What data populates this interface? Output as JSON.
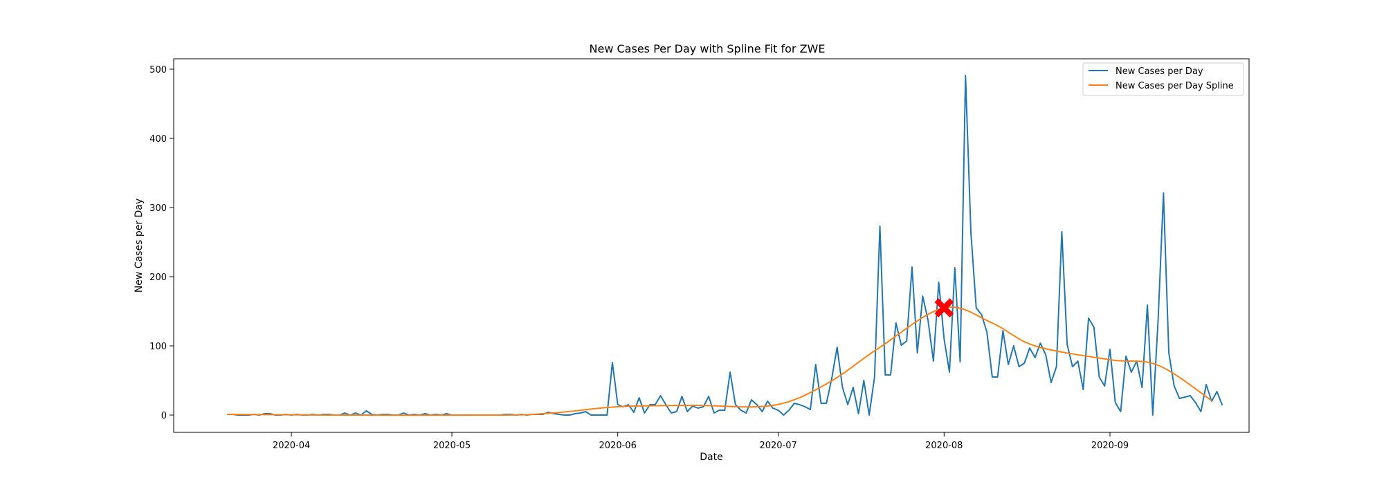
{
  "chart_data": {
    "type": "line",
    "title": "New Cases Per Day with Spline Fit for ZWE",
    "xlabel": "Date",
    "ylabel": "New Cases per Day",
    "xlim": [
      "2020-03-10",
      "2020-09-27"
    ],
    "ylim": [
      -25,
      515
    ],
    "x_ticks": [
      "2020-04",
      "2020-05",
      "2020-06",
      "2020-07",
      "2020-08",
      "2020-09"
    ],
    "x_tick_dates": [
      "2020-04-01",
      "2020-05-01",
      "2020-06-01",
      "2020-07-01",
      "2020-08-01",
      "2020-09-01"
    ],
    "y_ticks": [
      0,
      100,
      200,
      300,
      400,
      500
    ],
    "grid": false,
    "legend_position": "top-right",
    "series": [
      {
        "name": "New Cases per Day",
        "color": "#1f77b4",
        "start_date": "2020-03-20",
        "values": [
          1,
          1,
          0,
          0,
          0,
          1,
          0,
          2,
          2,
          0,
          0,
          1,
          0,
          1,
          0,
          0,
          1,
          0,
          1,
          1,
          0,
          0,
          3,
          0,
          3,
          0,
          6,
          1,
          0,
          1,
          1,
          0,
          0,
          3,
          0,
          1,
          0,
          2,
          0,
          1,
          0,
          2,
          0,
          0,
          0,
          0,
          0,
          0,
          0,
          0,
          0,
          0,
          1,
          1,
          0,
          1,
          0,
          1,
          1,
          1,
          4,
          2,
          1,
          0,
          0,
          2,
          3,
          5,
          0,
          0,
          0,
          0,
          76,
          15,
          12,
          15,
          4,
          25,
          3,
          15,
          15,
          28,
          15,
          3,
          5,
          27,
          5,
          13,
          10,
          12,
          27,
          3,
          7,
          7,
          62,
          15,
          7,
          3,
          22,
          15,
          5,
          20,
          10,
          7,
          0,
          7,
          17,
          15,
          12,
          8,
          73,
          17,
          17,
          53,
          98,
          40,
          15,
          40,
          2,
          50,
          0,
          55,
          273,
          58,
          58,
          133,
          101,
          107,
          214,
          90,
          172,
          137,
          78,
          192,
          110,
          62,
          213,
          77,
          491,
          265,
          155,
          145,
          120,
          55,
          55,
          122,
          73,
          100,
          70,
          75,
          97,
          83,
          104,
          87,
          47,
          70,
          265,
          102,
          70,
          78,
          37,
          140,
          127,
          55,
          42,
          95,
          18,
          5,
          85,
          62,
          78,
          40,
          159,
          0,
          137,
          321,
          90,
          42,
          24,
          26,
          28,
          18,
          5,
          44,
          20,
          34,
          14
        ]
      },
      {
        "name": "New Cases per Day Spline",
        "color": "#ff7f0e",
        "points": [
          [
            "2020-03-20",
            1
          ],
          [
            "2020-04-10",
            0
          ],
          [
            "2020-05-10",
            0
          ],
          [
            "2020-05-20",
            3
          ],
          [
            "2020-06-01",
            12
          ],
          [
            "2020-06-15",
            14
          ],
          [
            "2020-06-30",
            14
          ],
          [
            "2020-07-10",
            45
          ],
          [
            "2020-07-20",
            98
          ],
          [
            "2020-08-01",
            155
          ],
          [
            "2020-08-10",
            133
          ],
          [
            "2020-08-18",
            100
          ],
          [
            "2020-09-01",
            80
          ],
          [
            "2020-09-10",
            72
          ],
          [
            "2020-09-20",
            21
          ]
        ]
      }
    ],
    "annotations": [
      {
        "type": "marker",
        "symbol": "X",
        "date": "2020-08-01",
        "value": 155,
        "color": "#ff0000"
      }
    ]
  }
}
